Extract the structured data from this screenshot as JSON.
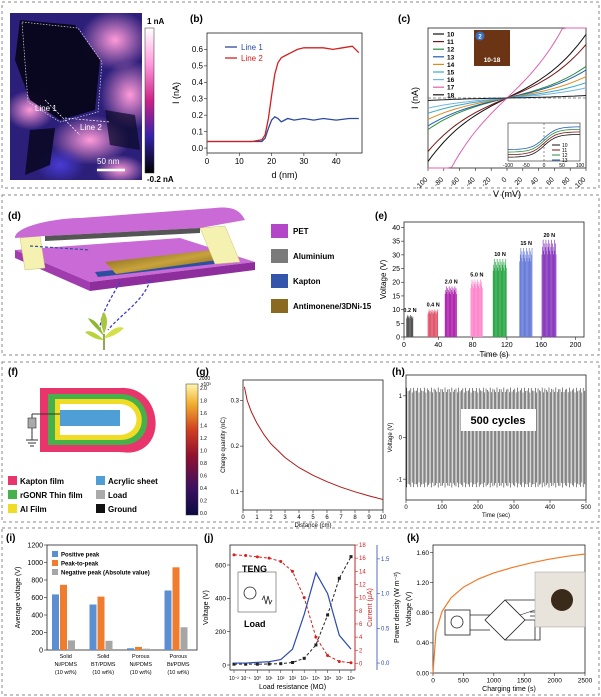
{
  "figure": {
    "panel_labels": [
      "(a)",
      "(b)",
      "(c)",
      "(d)",
      "(e)",
      "(f)",
      "(g)",
      "(h)",
      "(i)",
      "(j)",
      "(k)"
    ]
  },
  "panel_a": {
    "colorbar_top": "1 nA",
    "colorbar_bottom": "-0.2 nA",
    "line1_label": "Line 1",
    "line2_label": "Line 2",
    "scale_bar": "50 nm"
  },
  "chart_data": [
    {
      "id": "b",
      "type": "line",
      "xlabel": "d (nm)",
      "ylabel": "I (nA)",
      "xlim": [
        0,
        48
      ],
      "ylim": [
        -0.03,
        0.7
      ],
      "xticks": [
        "0",
        "10",
        "20",
        "30",
        "40"
      ],
      "yticks": [
        "0.0",
        "0.1",
        "0.2",
        "0.3",
        "0.4",
        "0.5",
        "0.6"
      ],
      "legend": [
        "Line 1",
        "Line 2"
      ],
      "series": [
        {
          "name": "Line 1",
          "color": "#2c4a9e",
          "x": [
            0,
            8,
            14,
            17,
            18,
            19,
            20,
            21,
            22,
            23,
            25,
            27,
            30,
            33,
            36,
            40,
            44,
            47
          ],
          "y": [
            0.04,
            0.04,
            0.04,
            0.04,
            0.06,
            0.12,
            0.17,
            0.19,
            0.18,
            0.16,
            0.18,
            0.17,
            0.18,
            0.17,
            0.18,
            0.17,
            0.18,
            0.18
          ]
        },
        {
          "name": "Line 2",
          "color": "#d42020",
          "x": [
            0,
            8,
            14,
            17,
            18,
            19,
            20,
            21,
            22,
            23,
            24,
            26,
            28,
            30,
            33,
            36,
            39,
            42,
            45,
            47
          ],
          "y": [
            0.04,
            0.04,
            0.04,
            0.05,
            0.08,
            0.18,
            0.32,
            0.45,
            0.52,
            0.55,
            0.56,
            0.58,
            0.6,
            0.61,
            0.61,
            0.61,
            0.6,
            0.61,
            0.62,
            0.58
          ]
        }
      ]
    },
    {
      "id": "c",
      "type": "line",
      "xlabel": "V (mV)",
      "ylabel": "I (nA)",
      "xlim": [
        -100,
        100
      ],
      "ylim": [
        -2.2,
        2.2
      ],
      "xticks": [
        "-100",
        "-80",
        "-60",
        "-40",
        "-20",
        "0",
        "20",
        "40",
        "60",
        "80",
        "100"
      ],
      "inset_photo_label": "10-18",
      "inset_badge": "2",
      "inset_ticks": [
        "-100",
        "-50",
        "0",
        "50",
        "100"
      ],
      "series": [
        {
          "name": "10",
          "color": "#111111",
          "slope": 1.25
        },
        {
          "name": "11",
          "color": "#7b1414",
          "slope": 1.05
        },
        {
          "name": "12",
          "color": "#2a8c3a",
          "slope": 0.62
        },
        {
          "name": "13",
          "color": "#1f5bb5",
          "slope": 0.55
        },
        {
          "name": "14",
          "color": "#e08a1e",
          "slope": 0.42
        },
        {
          "name": "15",
          "color": "#3aa9c8",
          "slope": 0.3
        },
        {
          "name": "16",
          "color": "#70b5e8",
          "slope": 0.2
        },
        {
          "name": "17",
          "color": "#e060b0",
          "slope": 2.4
        },
        {
          "name": "18",
          "color": "#1a1a1a",
          "slope": 0.05
        }
      ],
      "inset_legend": [
        "10",
        "11",
        "12",
        "13"
      ]
    },
    {
      "id": "e",
      "type": "bar",
      "xlabel": "Time (s)",
      "ylabel": "Voltage (V)",
      "xlim": [
        0,
        210
      ],
      "ylim": [
        0,
        42
      ],
      "xticks": [
        "0",
        "40",
        "80",
        "120",
        "160",
        "200"
      ],
      "yticks": [
        "0",
        "5",
        "10",
        "15",
        "20",
        "25",
        "30",
        "35",
        "40"
      ],
      "groups": [
        {
          "label": "0.2 N",
          "start": 3,
          "end": 11,
          "value": 8,
          "color": "#555555"
        },
        {
          "label": "0.4 N",
          "start": 28,
          "end": 40,
          "value": 10,
          "color": "#e05a6e"
        },
        {
          "label": "2.0 N",
          "start": 48,
          "end": 62,
          "value": 18.5,
          "color": "#b02ab0"
        },
        {
          "label": "5.0 N",
          "start": 78,
          "end": 92,
          "value": 21,
          "color": "#ff88cc"
        },
        {
          "label": "10 N",
          "start": 104,
          "end": 120,
          "value": 28.5,
          "color": "#2fa84a"
        },
        {
          "label": "15 N",
          "start": 135,
          "end": 150,
          "value": 32.5,
          "color": "#6a7fd9"
        },
        {
          "label": "20 N",
          "start": 161,
          "end": 178,
          "value": 35.5,
          "color": "#8a3dbf"
        }
      ]
    },
    {
      "id": "g",
      "type": "line",
      "xlabel": "Distance (cm)",
      "ylabel": "Charge quantity (nC)",
      "xlim": [
        0,
        10
      ],
      "ylim": [
        0.06,
        0.345
      ],
      "xticks": [
        "0",
        "1",
        "2",
        "3",
        "4",
        "5",
        "6",
        "7",
        "8",
        "9",
        "10"
      ],
      "yticks": [
        "0.1",
        "0.2",
        "0.3"
      ],
      "series": [
        {
          "name": "charge",
          "color": "#b01818",
          "x": [
            0.1,
            0.3,
            0.6,
            1,
            1.5,
            2,
            3,
            4,
            5,
            6,
            7,
            8,
            9,
            10
          ],
          "y": [
            0.33,
            0.3,
            0.275,
            0.25,
            0.225,
            0.205,
            0.175,
            0.153,
            0.136,
            0.122,
            0.11,
            0.1,
            0.091,
            0.083
          ]
        }
      ]
    },
    {
      "id": "h",
      "type": "line",
      "xlabel": "Time (sec)",
      "ylabel": "Voltage (V)",
      "xlim": [
        0,
        500
      ],
      "ylim": [
        -1.5,
        1.5
      ],
      "xticks": [
        "0",
        "100",
        "200",
        "300",
        "400",
        "500"
      ],
      "yticks": [
        "-1",
        "0",
        "1"
      ],
      "annotation": "500 cycles",
      "amplitude": 1.2
    },
    {
      "id": "i",
      "type": "bar",
      "ylabel": "Average voltage (V)",
      "ylim": [
        0,
        1200
      ],
      "yticks": [
        "0",
        "200",
        "400",
        "600",
        "800",
        "1000",
        "1200"
      ],
      "legend": [
        "Positive peak",
        "Peak-to-peak",
        "Negative peak (Absolute value)"
      ],
      "colors": [
        "#5b8fd1",
        "#ef7d2d",
        "#a6a6a6"
      ],
      "categories": [
        [
          "Solid",
          "Ni/PDMS",
          "(10 wt%)"
        ],
        [
          "Solid",
          "BT/PDMS",
          "(10 wt%)"
        ],
        [
          "Porous",
          "Ni/PDMS",
          "(10 wt%)"
        ],
        [
          "Porous",
          "Bt/PDMS",
          "(10 wt%)"
        ]
      ],
      "series": [
        {
          "name": "Positive peak",
          "values": [
            635,
            520,
            20,
            680
          ]
        },
        {
          "name": "Peak-to-peak",
          "values": [
            745,
            610,
            35,
            945
          ]
        },
        {
          "name": "Negative peak (Absolute value)",
          "values": [
            110,
            105,
            15,
            260
          ]
        }
      ]
    },
    {
      "id": "j",
      "type": "line",
      "xlabel": "Load resistance (MΩ)",
      "ylabel_left": "Voltage (V)",
      "ylabel_mid": "Current (μA)",
      "ylabel_right": "Power density (W m⁻²)",
      "xticks": [
        "10⁻²",
        "10⁻¹",
        "10⁰",
        "10¹",
        "10²",
        "10³",
        "10⁴",
        "10⁵",
        "10⁶",
        "10⁷",
        "10⁸"
      ],
      "yticks_left": [
        "0",
        "200",
        "400",
        "600"
      ],
      "yticks_mid": [
        "0",
        "2",
        "4",
        "6",
        "8",
        "10",
        "12",
        "14",
        "16",
        "18"
      ],
      "yticks_right": [
        "0.0",
        "0.5",
        "1.0",
        "1.5"
      ],
      "inset_top": "TENG",
      "inset_bottom": "Load",
      "voltage": [
        5,
        5,
        5,
        6,
        8,
        15,
        40,
        120,
        300,
        520,
        650
      ],
      "current": [
        16.5,
        16.4,
        16.2,
        16,
        15.5,
        14,
        10,
        4,
        1.2,
        0.3,
        0.1
      ],
      "power": [
        0.0,
        0.0,
        0.01,
        0.02,
        0.05,
        0.2,
        0.7,
        1.3,
        1.0,
        0.4,
        0.2
      ]
    },
    {
      "id": "k",
      "type": "line",
      "xlabel": "Charging time (s)",
      "ylabel": "Voltage (V)",
      "xlim": [
        0,
        2500
      ],
      "ylim": [
        0,
        1.7
      ],
      "xticks": [
        "0",
        "500",
        "1000",
        "1500",
        "2000",
        "2500"
      ],
      "yticks": [
        "0.00",
        "0.40",
        "0.80",
        "1.20",
        "1.60"
      ],
      "series": [
        {
          "name": "charging",
          "color": "#f07a28",
          "x": [
            0,
            50,
            150,
            300,
            500,
            750,
            1000,
            1300,
            1600,
            1900,
            2200,
            2500
          ],
          "y": [
            0,
            0.55,
            0.82,
            1.0,
            1.14,
            1.25,
            1.33,
            1.4,
            1.46,
            1.51,
            1.55,
            1.58
          ]
        }
      ]
    }
  ],
  "panel_d": {
    "legend": [
      {
        "label": "PET",
        "color": "#b347c8"
      },
      {
        "label": "Aluminium",
        "color": "#7a7a7a"
      },
      {
        "label": "Kapton",
        "color": "#3355aa"
      },
      {
        "label": "Antimonene/3DNi-15",
        "color": "#8a6a20"
      }
    ]
  },
  "panel_f": {
    "legend": [
      {
        "label": "Kapton film",
        "color": "#e8356b"
      },
      {
        "label": "Acrylic sheet",
        "color": "#4f9ed6"
      },
      {
        "label": "rGONR Thin film",
        "color": "#46b04a"
      },
      {
        "label": "Load",
        "color": "#aaaaaa"
      },
      {
        "label": "Al Film",
        "color": "#f0dc24"
      },
      {
        "label": "Ground",
        "color": "#111111"
      }
    ],
    "colorbar_top": "2000",
    "colorbar_exp": "x10³",
    "colorbar_ticks": [
      "2.0",
      "1.8",
      "1.6",
      "1.4",
      "1.2",
      "1.0",
      "0.8",
      "0.6",
      "0.4",
      "0.2",
      "0.0"
    ]
  }
}
